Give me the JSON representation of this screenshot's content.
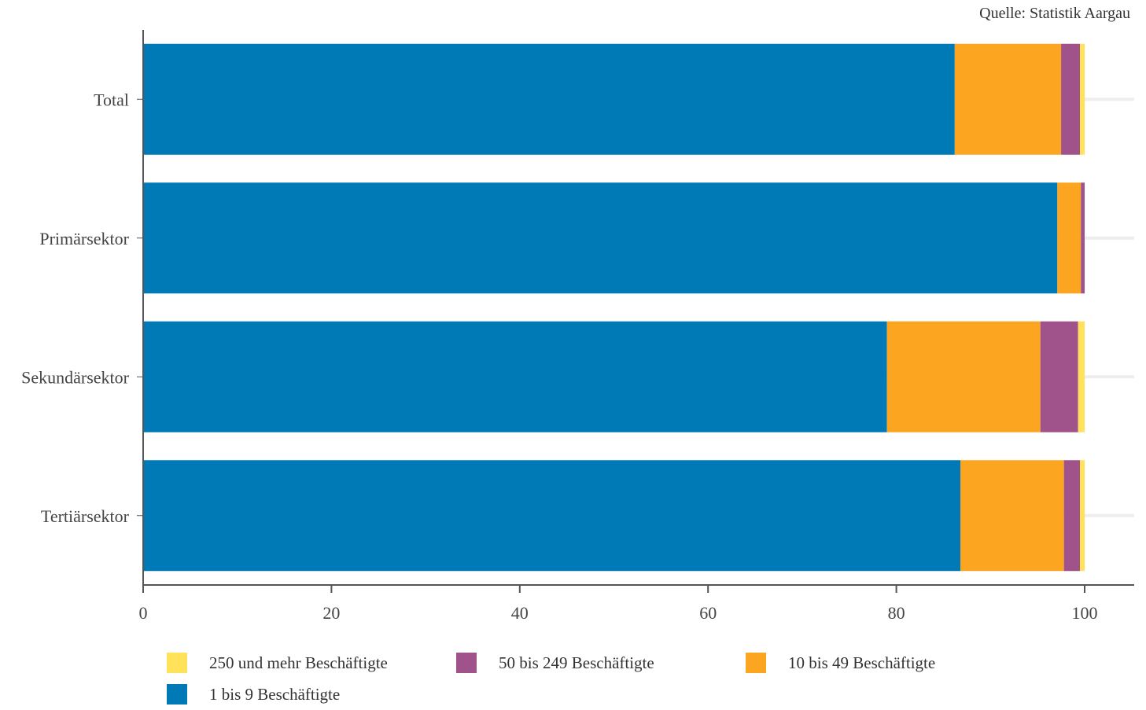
{
  "source_label": "Quelle: Statistik Aargau",
  "colors": {
    "s250": "#FFE15A",
    "s50": "#A0538A",
    "s10": "#FBA520",
    "s1": "#0079B7",
    "axis": "#555555",
    "grid": "#EEEEEE"
  },
  "chart_data": {
    "type": "bar",
    "orientation": "horizontal",
    "stacked": true,
    "categories": [
      "Total",
      "Primärsektor",
      "Sekundärsektor",
      "Tertiärsektor"
    ],
    "series": [
      {
        "name": "1 bis 9 Beschäftigte",
        "color": "#0079B7",
        "values": [
          86.2,
          97.1,
          79.0,
          86.8
        ]
      },
      {
        "name": "10 bis 49 Beschäftigte",
        "color": "#FBA520",
        "values": [
          11.3,
          2.5,
          16.3,
          11.0
        ]
      },
      {
        "name": "50 bis 249 Beschäftigte",
        "color": "#A0538A",
        "values": [
          2.0,
          0.4,
          4.0,
          1.7
        ]
      },
      {
        "name": "250 und mehr Beschäftigte",
        "color": "#FFE15A",
        "values": [
          0.5,
          0.0,
          0.7,
          0.5
        ]
      }
    ],
    "xlim": [
      0,
      105
    ],
    "xticks": [
      "0",
      "20",
      "40",
      "60",
      "80",
      "100"
    ],
    "xtick_values": [
      0,
      20,
      40,
      60,
      80,
      100
    ],
    "legend": {
      "position": "bottom",
      "items": [
        {
          "label": "250 und mehr Beschäftigte",
          "color": "#FFE15A"
        },
        {
          "label": "50 bis 249 Beschäftigte",
          "color": "#A0538A"
        },
        {
          "label": "10 bis 49 Beschäftigte",
          "color": "#FBA520"
        },
        {
          "label": "1 bis 9 Beschäftigte",
          "color": "#0079B7"
        }
      ]
    },
    "grid": true
  }
}
